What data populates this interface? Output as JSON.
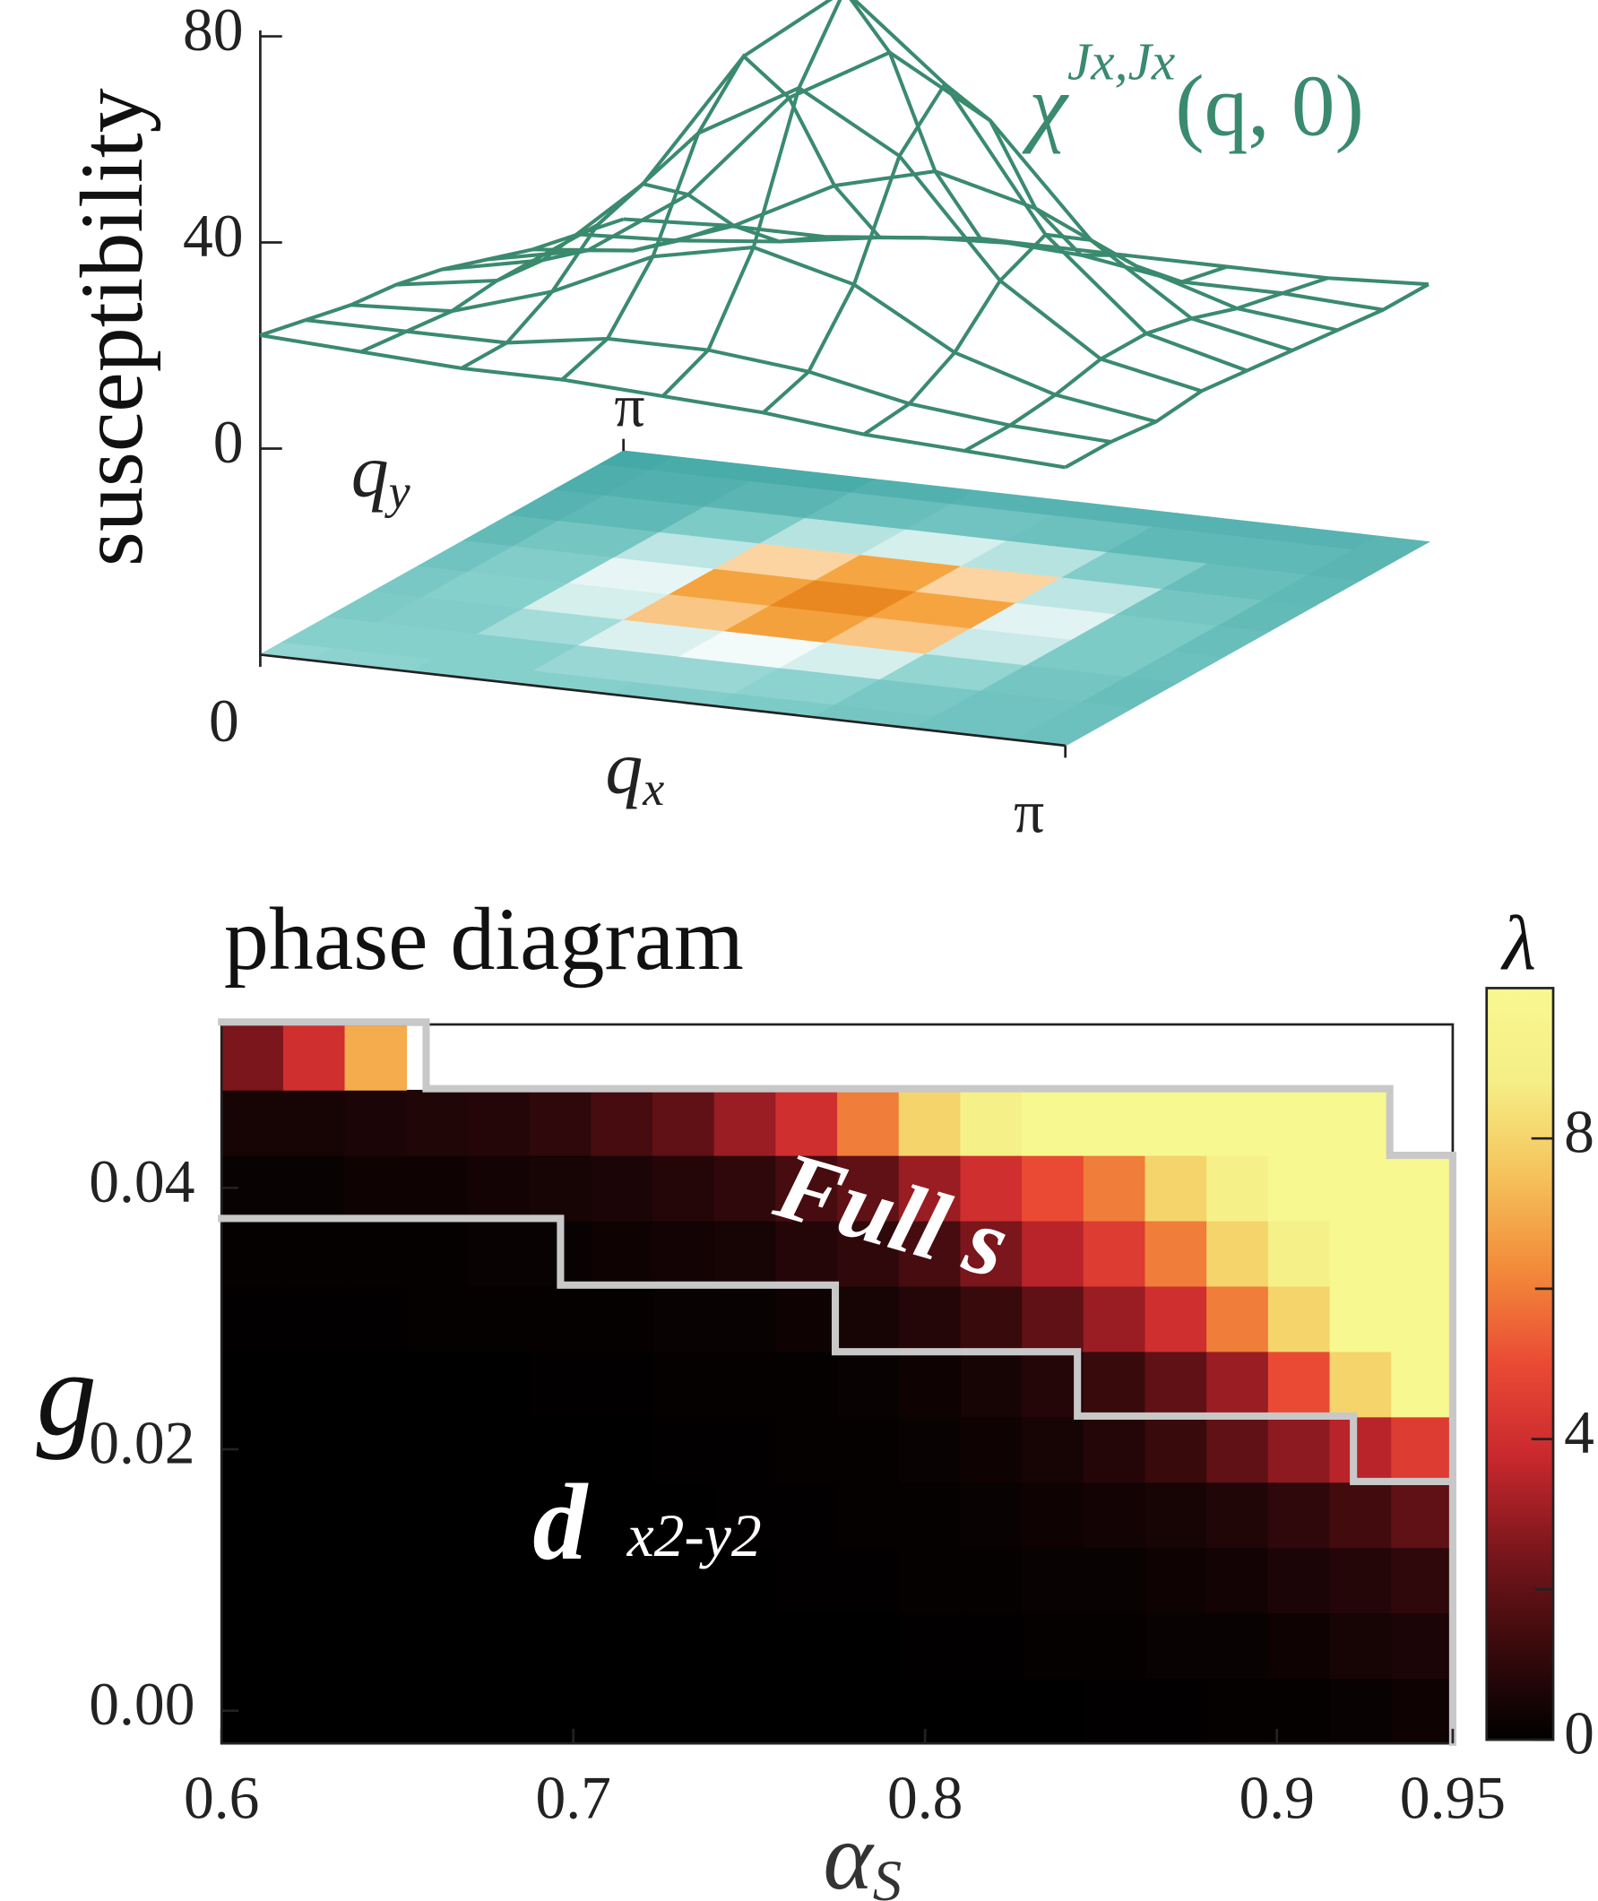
{
  "chart_data": [
    {
      "type": "surface",
      "z_label": "susceptibility",
      "annotation": {
        "symbol": "χ",
        "superscript": "Jx,Jx",
        "argument": "(q, 0)"
      },
      "x_label": {
        "main": "q",
        "sub": "x"
      },
      "y_label": {
        "main": "q",
        "sub": "y"
      },
      "x": [
        0,
        0.393,
        0.785,
        1.178,
        1.571,
        1.963,
        2.356,
        2.749,
        3.142
      ],
      "y": [
        0,
        0.393,
        0.785,
        1.178,
        1.571,
        1.963,
        2.356,
        2.749,
        3.142
      ],
      "z": [
        [
          22,
          21,
          20,
          20,
          19,
          18,
          16,
          15,
          14
        ],
        [
          20,
          20,
          20,
          23,
          23,
          21,
          17,
          15,
          14
        ],
        [
          18,
          19,
          25,
          34,
          38,
          33,
          22,
          16,
          13
        ],
        [
          17,
          20,
          33,
          53,
          64,
          53,
          31,
          18,
          14
        ],
        [
          15,
          19,
          36,
          63,
          78,
          62,
          35,
          18,
          13
        ],
        [
          12,
          16,
          29,
          50,
          61,
          50,
          29,
          16,
          12
        ],
        [
          9,
          11,
          18,
          28,
          33,
          28,
          19,
          13,
          11
        ],
        [
          7,
          8,
          10,
          13,
          15,
          14,
          11,
          11,
          10
        ],
        [
          5,
          6,
          6,
          8,
          9,
          9,
          9,
          9,
          10
        ]
      ],
      "xlim": [
        0,
        3.142
      ],
      "ylim": [
        0,
        3.142
      ],
      "zlim": [
        0,
        80
      ],
      "zticks": [
        0,
        40,
        80
      ],
      "xticks": [
        0,
        {
          "value": 3.142,
          "label": "π"
        }
      ],
      "yticks": [
        {
          "value": 3.142,
          "label": "π"
        }
      ],
      "color": "#3a8a6e",
      "floor_colormap": [
        "#2f9c9a",
        "#86d0cc",
        "#ffffff",
        "#f6a844",
        "#e8841c"
      ]
    },
    {
      "type": "heatmap",
      "title": "phase diagram",
      "x_label": {
        "main": "α",
        "sub": "S"
      },
      "y_label": "g",
      "colorbar_label": "λ",
      "annotations": [
        "Full s",
        "d",
        "x2-y2"
      ],
      "xbins": [
        0.6,
        0.6175,
        0.635,
        0.6525,
        0.67,
        0.6875,
        0.705,
        0.7225,
        0.74,
        0.7575,
        0.775,
        0.7925,
        0.81,
        0.8275,
        0.845,
        0.8625,
        0.88,
        0.8975,
        0.915,
        0.9325,
        0.95
      ],
      "ybins": [
        -0.0025,
        0.0025,
        0.0075,
        0.0125,
        0.0175,
        0.0225,
        0.0275,
        0.0325,
        0.0375,
        0.0425,
        0.0475,
        0.0525
      ],
      "values": [
        [
          0,
          0,
          0,
          0,
          0,
          0,
          0,
          0,
          0,
          0,
          0,
          0,
          0,
          0,
          0.05,
          0.05,
          0.1,
          0.1,
          0.2,
          0.3
        ],
        [
          0,
          0,
          0,
          0,
          0,
          0,
          0,
          0,
          0,
          0,
          0,
          0.05,
          0.05,
          0.1,
          0.1,
          0.2,
          0.2,
          0.3,
          0.5,
          0.6
        ],
        [
          0,
          0,
          0,
          0,
          0,
          0,
          0,
          0,
          0,
          0.05,
          0.05,
          0.1,
          0.1,
          0.2,
          0.2,
          0.3,
          0.4,
          0.6,
          0.8,
          1
        ],
        [
          0,
          0,
          0,
          0,
          0,
          0,
          0,
          0,
          0.05,
          0.05,
          0.1,
          0.1,
          0.2,
          0.3,
          0.4,
          0.5,
          0.7,
          1,
          1.4,
          2
        ],
        [
          0,
          0,
          0,
          0,
          0,
          0,
          0,
          0.05,
          0.05,
          0.1,
          0.1,
          0.2,
          0.3,
          0.5,
          0.8,
          1.2,
          2,
          2.8,
          3.5,
          4.5
        ],
        [
          0,
          0,
          0,
          0,
          0,
          0.05,
          0.05,
          0.1,
          0.1,
          0.1,
          0.2,
          0.3,
          0.5,
          0.8,
          1.2,
          2,
          3,
          5,
          8,
          10
        ],
        [
          0.05,
          0.05,
          0.05,
          0.1,
          0.1,
          0.1,
          0.1,
          0.2,
          0.2,
          0.3,
          0.5,
          0.8,
          1.2,
          2,
          3,
          4,
          6,
          8,
          10,
          10
        ],
        [
          0.1,
          0.1,
          0.1,
          0.1,
          0.2,
          0.2,
          0.3,
          0.4,
          0.5,
          0.8,
          1,
          1.5,
          2.5,
          3.5,
          4.5,
          6,
          8,
          9,
          10,
          10
        ],
        [
          0.2,
          0.2,
          0.3,
          0.3,
          0.4,
          0.5,
          0.6,
          0.8,
          1,
          1.5,
          2,
          3,
          4,
          5,
          6,
          8,
          9,
          10,
          10,
          10
        ],
        [
          0.5,
          0.5,
          0.6,
          0.7,
          0.8,
          1,
          1.5,
          2,
          3,
          4,
          6,
          8,
          9,
          10,
          10,
          10,
          10,
          10,
          10,
          null
        ],
        [
          2.5,
          4,
          7,
          null,
          null,
          null,
          null,
          null,
          null,
          null,
          null,
          null,
          null,
          null,
          null,
          null,
          null,
          null,
          null,
          null
        ]
      ],
      "xlim": [
        0.6,
        0.95
      ],
      "ylim": [
        -0.0025,
        0.0525
      ],
      "xticks": [
        0.6,
        0.7,
        0.8,
        0.9,
        0.95
      ],
      "yticks": [
        {
          "value": 0,
          "label": "0.00"
        },
        {
          "value": 0.02,
          "label": "0.02"
        },
        {
          "value": 0.04,
          "label": "0.04"
        }
      ],
      "clim": [
        0,
        10
      ],
      "cticks": [
        0,
        4,
        8
      ],
      "cminor_ticks": [
        2,
        6
      ],
      "colormap": [
        "#000000",
        "#3a0a0c",
        "#7a161c",
        "#c8282e",
        "#ea4a34",
        "#f28a3a",
        "#f5c25a",
        "#f6ee86",
        "#f8f890"
      ]
    }
  ]
}
